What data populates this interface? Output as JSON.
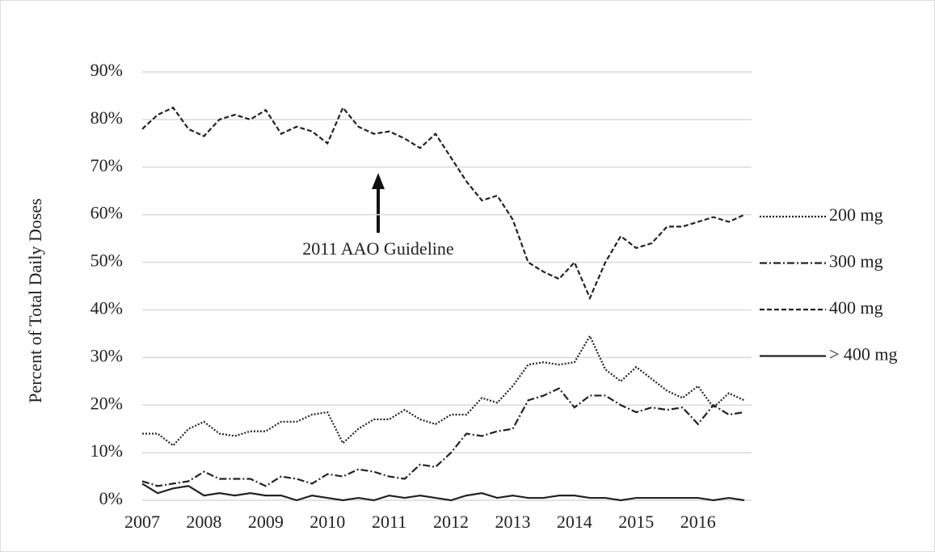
{
  "chart_data": {
    "type": "line",
    "y_label": "Percent of Total Daily Doses",
    "annotation": "2011 AAO Guideline",
    "x": [
      2007,
      2007.25,
      2007.5,
      2007.75,
      2008,
      2008.25,
      2008.5,
      2008.75,
      2009,
      2009.25,
      2009.5,
      2009.75,
      2010,
      2010.25,
      2010.5,
      2010.75,
      2011,
      2011.25,
      2011.5,
      2011.75,
      2012,
      2012.25,
      2012.5,
      2012.75,
      2013,
      2013.25,
      2013.5,
      2013.75,
      2014,
      2014.25,
      2014.5,
      2014.75,
      2015,
      2015.25,
      2015.5,
      2015.75,
      2016,
      2016.25,
      2016.5,
      2016.75
    ],
    "xlim": [
      2007,
      2016.75
    ],
    "xticks": [
      2007,
      2008,
      2009,
      2010,
      2011,
      2012,
      2013,
      2014,
      2015,
      2016
    ],
    "ylim": [
      0,
      90
    ],
    "yticks": [
      {
        "value": 0,
        "label": "0%"
      },
      {
        "value": 10,
        "label": "10%"
      },
      {
        "value": 20,
        "label": "20%"
      },
      {
        "value": 30,
        "label": "30%"
      },
      {
        "value": 40,
        "label": "40%"
      },
      {
        "value": 50,
        "label": "50%"
      },
      {
        "value": 60,
        "label": "60%"
      },
      {
        "value": 70,
        "label": "70%"
      },
      {
        "value": 80,
        "label": "80%"
      },
      {
        "value": 90,
        "label": "90%"
      }
    ],
    "grid": true,
    "legend": "right",
    "series": [
      {
        "name": "200 mg",
        "color": "#222222",
        "dash": "2,2",
        "values": [
          14,
          14,
          11.5,
          15,
          16.5,
          14,
          13.5,
          14.5,
          14.5,
          16.5,
          16.5,
          18,
          18.5,
          12,
          15,
          17,
          17,
          19,
          17,
          16,
          18,
          18,
          21.5,
          20.5,
          24,
          28.5,
          29,
          28.5,
          29,
          34.5,
          27.5,
          25,
          28,
          25.5,
          23,
          21.5,
          24,
          19.5,
          22.5,
          21
        ]
      },
      {
        "name": "300 mg",
        "color": "#222222",
        "dash": "9,3,2,3",
        "values": [
          4,
          3,
          3.5,
          4,
          6,
          4.5,
          4.5,
          4.5,
          3,
          5,
          4.5,
          3.5,
          5.5,
          5,
          6.5,
          6,
          5,
          4.5,
          7.5,
          7,
          10,
          14,
          13.5,
          14.5,
          15,
          21,
          22,
          23.5,
          19.5,
          22,
          22,
          20,
          18.5,
          19.5,
          19,
          19.5,
          16,
          20,
          18,
          18.5
        ]
      },
      {
        "name": "400 mg",
        "color": "#222222",
        "dash": "6,3",
        "values": [
          78,
          81,
          82.5,
          78,
          76.5,
          80,
          81,
          80,
          82,
          77,
          78.5,
          77.5,
          75,
          82.5,
          78.5,
          77,
          77.5,
          76,
          74,
          77,
          72,
          67,
          63,
          64,
          59,
          50,
          48,
          46.5,
          50,
          42.5,
          50,
          55.5,
          53,
          54,
          57.5,
          57.5,
          58.5,
          59.5,
          58.5,
          60
        ]
      },
      {
        "name": "> 400 mg",
        "color": "#222222",
        "dash": "none",
        "values": [
          3.5,
          1.5,
          2.5,
          3,
          1,
          1.5,
          1,
          1.5,
          1,
          1,
          0,
          1,
          0.5,
          0,
          0.5,
          0,
          1,
          0.5,
          1,
          0.5,
          0,
          1,
          1.5,
          0.5,
          1,
          0.5,
          0.5,
          1,
          1,
          0.5,
          0.5,
          0,
          0.5,
          0.5,
          0.5,
          0.5,
          0.5,
          0,
          0.5,
          0
        ]
      }
    ]
  }
}
